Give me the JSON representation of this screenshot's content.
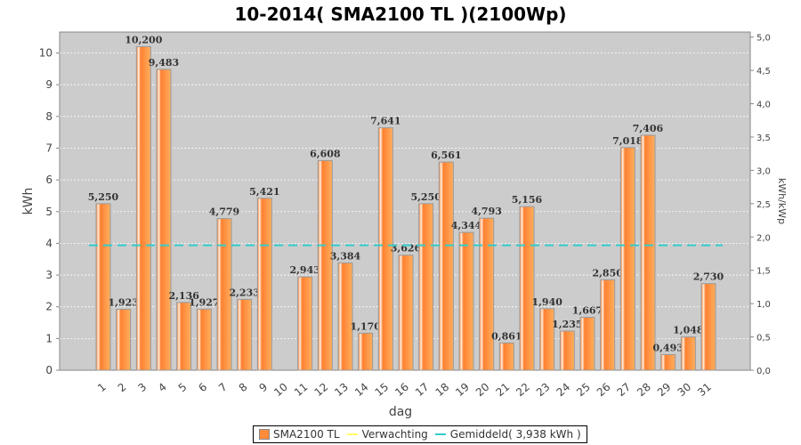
{
  "chart_data": {
    "type": "bar",
    "title": "10-2014( SMA2100 TL )(2100Wp)",
    "xlabel": "dag",
    "ylabel": "kWh",
    "y2label": "kWh/kWp",
    "ylim": [
      0,
      10.66
    ],
    "y2lim": [
      0,
      5.076
    ],
    "yticks": [
      "0",
      "1",
      "2",
      "3",
      "4",
      "5",
      "6",
      "7",
      "8",
      "9",
      "10"
    ],
    "y2ticks": [
      "0,0",
      "0,5",
      "1,0",
      "1,5",
      "2,0",
      "2,5",
      "3,0",
      "3,5",
      "4,0",
      "4,5",
      "5,0"
    ],
    "categories": [
      "1",
      "2",
      "3",
      "4",
      "5",
      "6",
      "7",
      "8",
      "9",
      "10",
      "11",
      "12",
      "13",
      "14",
      "15",
      "16",
      "17",
      "18",
      "19",
      "20",
      "21",
      "22",
      "23",
      "24",
      "25",
      "26",
      "27",
      "28",
      "29",
      "30",
      "31"
    ],
    "values": [
      5.25,
      1.923,
      10.2,
      9.483,
      2.136,
      1.927,
      4.779,
      2.233,
      5.421,
      0,
      2.943,
      6.608,
      3.384,
      1.17,
      7.641,
      3.626,
      5.25,
      6.561,
      4.344,
      4.793,
      0.861,
      5.156,
      1.94,
      1.235,
      1.667,
      2.85,
      7.018,
      7.406,
      0.493,
      1.048,
      2.73
    ],
    "labels": [
      "5,250",
      "1,923",
      "10,200",
      "9,483",
      "2,136",
      "1,927",
      "4,779",
      "2,233",
      "5,421",
      "",
      "2,943",
      "6,608",
      "3,384",
      "1,170",
      "7,641",
      "3,626",
      "5,250",
      "6,561",
      "4,344",
      "4,793",
      "0,861",
      "5,156",
      "1,940",
      "1,235",
      "1,667",
      "2,850",
      "7,018",
      "7,406",
      "0,493",
      "1,048",
      "2,730"
    ],
    "average": 3.938,
    "grid": true,
    "legend": {
      "placement": "bottom",
      "items": [
        "SMA2100 TL",
        "Verwachting",
        "Gemiddeld( 3,938 kWh )"
      ]
    },
    "colors": {
      "bar": "#ff8c3a",
      "expected": "#ffff66",
      "average": "#33cccc",
      "plot_bg": "#cccccc"
    }
  }
}
